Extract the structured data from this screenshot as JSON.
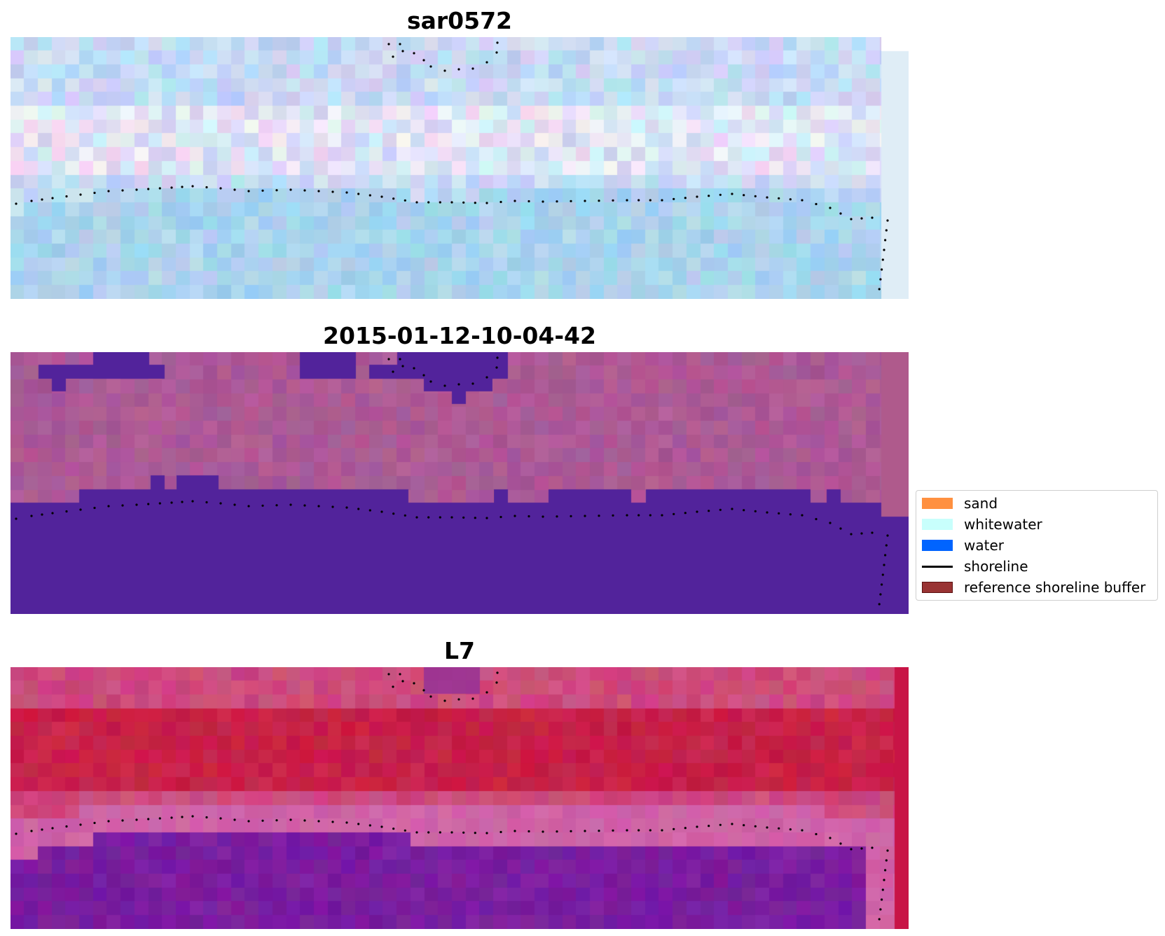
{
  "panels": [
    {
      "title": "sar0572",
      "style": "sar"
    },
    {
      "title": "2015-01-12-10-04-42",
      "style": "classified"
    },
    {
      "title": "L7",
      "style": "index"
    }
  ],
  "legend": {
    "items": [
      {
        "label": "sand",
        "color": "#ff9040",
        "kind": "patch"
      },
      {
        "label": "whitewater",
        "color": "#c8fffc",
        "kind": "patch"
      },
      {
        "label": "water",
        "color": "#0064ff",
        "kind": "patch"
      },
      {
        "label": "shoreline",
        "color": "#000000",
        "kind": "line"
      },
      {
        "label": "reference shoreline buffer",
        "color": "#993333",
        "kind": "patch"
      }
    ]
  },
  "colors": {
    "shoreline_dots": "#000000",
    "classified_water": "#52239b",
    "classified_land": "#a5558f"
  }
}
